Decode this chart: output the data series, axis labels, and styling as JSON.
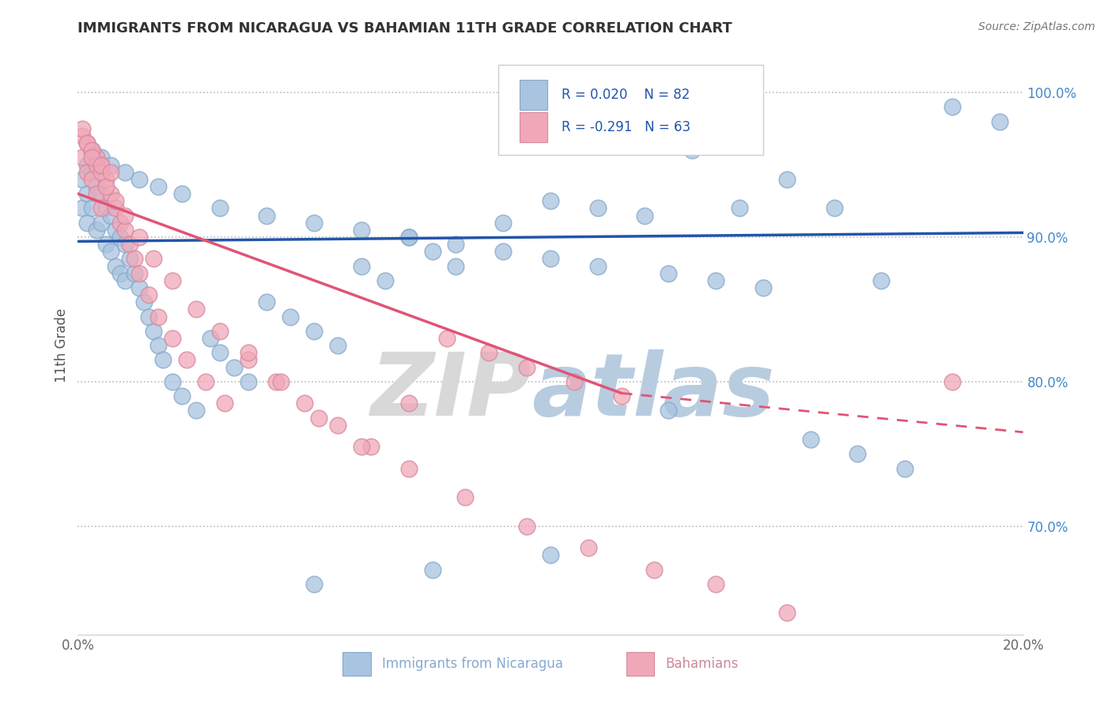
{
  "title": "IMMIGRANTS FROM NICARAGUA VS BAHAMIAN 11TH GRADE CORRELATION CHART",
  "source": "Source: ZipAtlas.com",
  "xlabel_bottom": "Immigrants from Nicaragua",
  "xlabel_right": "Bahamians",
  "ylabel": "11th Grade",
  "x_min": 0.0,
  "x_max": 0.2,
  "y_min": 0.625,
  "y_max": 1.025,
  "right_yticks": [
    0.7,
    0.8,
    0.9,
    1.0
  ],
  "right_yticklabels": [
    "70.0%",
    "80.0%",
    "90.0%",
    "100.0%"
  ],
  "blue_color": "#a8c4e0",
  "blue_edge_color": "#88a8c8",
  "pink_color": "#f0a8b8",
  "pink_edge_color": "#d888a0",
  "blue_line_color": "#2255aa",
  "pink_line_color": "#e05575",
  "legend_R_blue": "R = 0.020",
  "legend_N_blue": "N = 82",
  "legend_R_pink": "R = -0.291",
  "legend_N_pink": "N = 63",
  "blue_line_y0": 0.897,
  "blue_line_y1": 0.903,
  "pink_line_y0": 0.93,
  "pink_line_solid_x1": 0.115,
  "pink_line_solid_y1": 0.792,
  "pink_line_y1": 0.765,
  "watermark_zip_color": "#d8d8d8",
  "watermark_atlas_color": "#b8cce0",
  "blue_scatter_x": [
    0.001,
    0.001,
    0.002,
    0.002,
    0.002,
    0.003,
    0.003,
    0.004,
    0.004,
    0.005,
    0.005,
    0.006,
    0.006,
    0.007,
    0.007,
    0.008,
    0.008,
    0.009,
    0.009,
    0.01,
    0.01,
    0.011,
    0.012,
    0.013,
    0.014,
    0.015,
    0.016,
    0.017,
    0.018,
    0.02,
    0.022,
    0.025,
    0.028,
    0.03,
    0.033,
    0.036,
    0.04,
    0.045,
    0.05,
    0.055,
    0.06,
    0.065,
    0.07,
    0.075,
    0.08,
    0.09,
    0.1,
    0.11,
    0.12,
    0.13,
    0.14,
    0.15,
    0.16,
    0.17,
    0.185,
    0.195,
    0.003,
    0.005,
    0.007,
    0.01,
    0.013,
    0.017,
    0.022,
    0.03,
    0.04,
    0.05,
    0.06,
    0.07,
    0.08,
    0.09,
    0.1,
    0.11,
    0.125,
    0.135,
    0.145,
    0.155,
    0.165,
    0.175,
    0.125,
    0.1,
    0.075,
    0.05
  ],
  "blue_scatter_y": [
    0.94,
    0.92,
    0.95,
    0.93,
    0.91,
    0.945,
    0.92,
    0.935,
    0.905,
    0.93,
    0.91,
    0.92,
    0.895,
    0.915,
    0.89,
    0.905,
    0.88,
    0.9,
    0.875,
    0.895,
    0.87,
    0.885,
    0.875,
    0.865,
    0.855,
    0.845,
    0.835,
    0.825,
    0.815,
    0.8,
    0.79,
    0.78,
    0.83,
    0.82,
    0.81,
    0.8,
    0.855,
    0.845,
    0.835,
    0.825,
    0.88,
    0.87,
    0.9,
    0.89,
    0.88,
    0.91,
    0.925,
    0.92,
    0.915,
    0.96,
    0.92,
    0.94,
    0.92,
    0.87,
    0.99,
    0.98,
    0.96,
    0.955,
    0.95,
    0.945,
    0.94,
    0.935,
    0.93,
    0.92,
    0.915,
    0.91,
    0.905,
    0.9,
    0.895,
    0.89,
    0.885,
    0.88,
    0.875,
    0.87,
    0.865,
    0.76,
    0.75,
    0.74,
    0.78,
    0.68,
    0.67,
    0.66
  ],
  "pink_scatter_x": [
    0.001,
    0.001,
    0.002,
    0.002,
    0.003,
    0.003,
    0.004,
    0.004,
    0.005,
    0.005,
    0.006,
    0.007,
    0.008,
    0.009,
    0.01,
    0.011,
    0.012,
    0.013,
    0.015,
    0.017,
    0.02,
    0.023,
    0.027,
    0.031,
    0.036,
    0.042,
    0.048,
    0.055,
    0.062,
    0.07,
    0.078,
    0.087,
    0.095,
    0.105,
    0.115,
    0.001,
    0.002,
    0.003,
    0.004,
    0.005,
    0.006,
    0.008,
    0.01,
    0.013,
    0.016,
    0.02,
    0.025,
    0.03,
    0.036,
    0.043,
    0.051,
    0.06,
    0.07,
    0.082,
    0.095,
    0.108,
    0.122,
    0.003,
    0.005,
    0.007,
    0.135,
    0.15,
    0.185
  ],
  "pink_scatter_y": [
    0.97,
    0.955,
    0.965,
    0.945,
    0.96,
    0.94,
    0.955,
    0.93,
    0.95,
    0.92,
    0.94,
    0.93,
    0.92,
    0.91,
    0.905,
    0.895,
    0.885,
    0.875,
    0.86,
    0.845,
    0.83,
    0.815,
    0.8,
    0.785,
    0.815,
    0.8,
    0.785,
    0.77,
    0.755,
    0.785,
    0.83,
    0.82,
    0.81,
    0.8,
    0.79,
    0.975,
    0.965,
    0.96,
    0.95,
    0.945,
    0.935,
    0.925,
    0.915,
    0.9,
    0.885,
    0.87,
    0.85,
    0.835,
    0.82,
    0.8,
    0.775,
    0.755,
    0.74,
    0.72,
    0.7,
    0.685,
    0.67,
    0.955,
    0.95,
    0.945,
    0.66,
    0.64,
    0.8
  ]
}
